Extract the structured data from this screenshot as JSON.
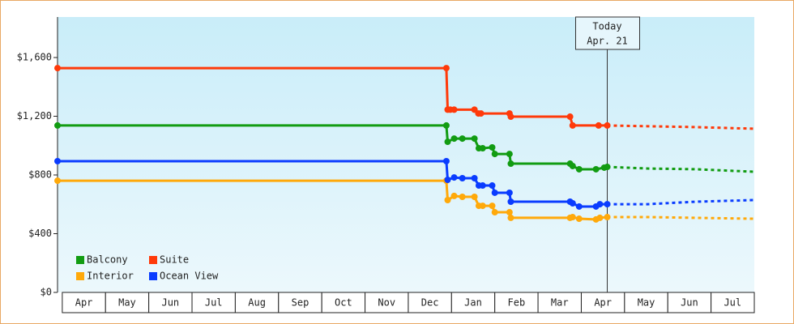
{
  "chart_data": {
    "type": "line",
    "categories": [
      "Apr",
      "May",
      "Jun",
      "Jul",
      "Aug",
      "Sep",
      "Oct",
      "Nov",
      "Dec",
      "Jan",
      "Feb",
      "Mar",
      "Apr",
      "May",
      "Jun",
      "Jul"
    ],
    "xlim": [
      -0.11,
      16
    ],
    "ylim": [
      0,
      1876
    ],
    "yticks": [
      {
        "value": 0,
        "label": "$0"
      },
      {
        "value": 400,
        "label": "$400"
      },
      {
        "value": 800,
        "label": "$800"
      },
      {
        "value": 1200,
        "label": "$1,200"
      },
      {
        "value": 1600,
        "label": "$1,600"
      }
    ],
    "today": {
      "x": 12.6,
      "label": [
        "Today",
        "Apr. 21"
      ]
    },
    "series": [
      {
        "name": "Balcony",
        "color": "#129c12",
        "x": [
          -0.11,
          8.88,
          8.91,
          9.06,
          9.25,
          9.53,
          9.63,
          9.72,
          9.94,
          10.0,
          10.34,
          10.37,
          11.74,
          11.8,
          11.95,
          12.34,
          12.53,
          12.6
        ],
        "values": [
          1137,
          1137,
          1026,
          1048,
          1048,
          1048,
          982,
          982,
          988,
          943,
          943,
          877,
          877,
          861,
          839,
          839,
          850,
          855
        ],
        "forecast_x": [
          12.6,
          13.53,
          14.65,
          15.99
        ],
        "forecast_values": [
          855,
          844,
          839,
          822
        ]
      },
      {
        "name": "Suite",
        "color": "#ff3a0a",
        "x": [
          -0.11,
          8.88,
          8.91,
          8.97,
          9.06,
          9.53,
          9.62,
          9.68,
          10.34,
          10.37,
          11.74,
          11.8,
          12.4,
          12.6
        ],
        "values": [
          1528,
          1528,
          1245,
          1245,
          1245,
          1245,
          1219,
          1219,
          1219,
          1197,
          1197,
          1137,
          1137,
          1137
        ],
        "forecast_x": [
          12.6,
          13.53,
          14.65,
          15.99
        ],
        "forecast_values": [
          1137,
          1132,
          1126,
          1115
        ]
      },
      {
        "name": "Interior",
        "color": "#ffa90a",
        "x": [
          -0.11,
          8.88,
          8.91,
          9.06,
          9.25,
          9.53,
          9.63,
          9.72,
          9.94,
          10.0,
          10.34,
          10.37,
          11.74,
          11.8,
          11.95,
          12.34,
          12.43,
          12.6
        ],
        "values": [
          761,
          761,
          629,
          657,
          651,
          651,
          590,
          590,
          590,
          546,
          546,
          508,
          508,
          513,
          502,
          497,
          508,
          513
        ],
        "forecast_x": [
          12.6,
          13.53,
          14.65,
          15.99
        ],
        "forecast_values": [
          513,
          513,
          508,
          502
        ]
      },
      {
        "name": "Ocean View",
        "color": "#0a3cff",
        "x": [
          -0.11,
          8.88,
          8.91,
          9.06,
          9.25,
          9.53,
          9.63,
          9.72,
          9.94,
          10.0,
          10.34,
          10.37,
          11.74,
          11.8,
          11.95,
          12.34,
          12.43,
          12.6
        ],
        "values": [
          894,
          894,
          767,
          783,
          778,
          778,
          728,
          728,
          728,
          679,
          679,
          618,
          618,
          607,
          585,
          585,
          601,
          601
        ],
        "forecast_x": [
          12.6,
          13.53,
          14.65,
          15.99
        ],
        "forecast_values": [
          601,
          601,
          618,
          629
        ]
      }
    ]
  }
}
